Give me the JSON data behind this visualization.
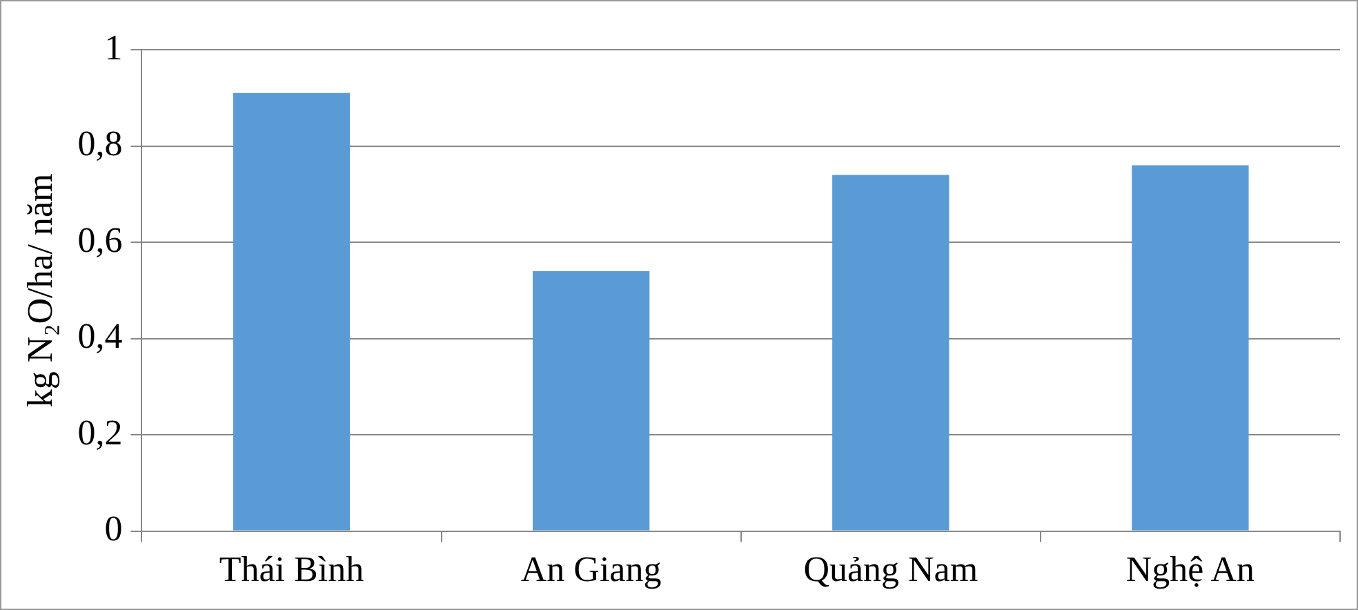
{
  "chart_data": {
    "type": "bar",
    "ylabel": "kg N₂O/ha/ năm",
    "categories": [
      "Thái Bình",
      "An Giang",
      "Quảng Nam",
      "Nghệ An"
    ],
    "values": [
      0.91,
      0.54,
      0.74,
      0.76
    ],
    "color": "#5b9bd5",
    "ylim": [
      0,
      1
    ],
    "yticks": [
      0,
      {
        "value": 0.2,
        "label": "0,2"
      },
      {
        "value": 0.4,
        "label": "0,4"
      },
      {
        "value": 0.6,
        "label": "0,6"
      },
      {
        "value": 0.8,
        "label": "0,8"
      },
      1
    ],
    "grid": "y",
    "legend": false
  }
}
